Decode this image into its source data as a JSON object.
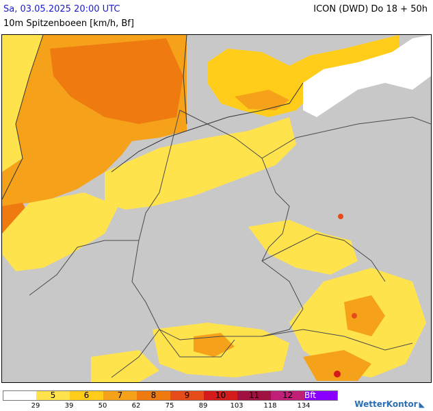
{
  "header": {
    "datetime": "Sa, 03.05.2025 20:00 UTC",
    "model": "ICON (DWD) Do 18 + 50h",
    "parameter": "10m Spitzenboeen [km/h, Bf]"
  },
  "map": {
    "region": "Central Europe / Germany",
    "colors": {
      "land_background": "#c8c8c8",
      "no_data_white": "#ffffff",
      "border_lines": "#4a4a4a"
    }
  },
  "legend": {
    "bins": [
      {
        "bf": "",
        "color": "#ffffff"
      },
      {
        "bf": "5",
        "color": "#ffe34d"
      },
      {
        "bf": "6",
        "color": "#ffcc1a"
      },
      {
        "bf": "7",
        "color": "#f5a21a"
      },
      {
        "bf": "8",
        "color": "#ee7a10"
      },
      {
        "bf": "9",
        "color": "#e64c1a"
      },
      {
        "bf": "10",
        "color": "#d41a1a"
      },
      {
        "bf": "11",
        "color": "#a01040"
      },
      {
        "bf": "12",
        "color": "#c01f78"
      },
      {
        "bf": "Bft",
        "color": "#8a00ff"
      }
    ],
    "thresholds_kmh": [
      "29",
      "39",
      "50",
      "62",
      "75",
      "89",
      "103",
      "118",
      "134"
    ]
  },
  "branding": {
    "logo_text": "WetterKontor"
  }
}
